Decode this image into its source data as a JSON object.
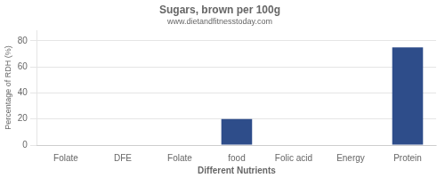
{
  "chart_data": {
    "type": "bar",
    "title": "Sugars, brown per 100g",
    "subtitle": "www.dietandfitnesstoday.com",
    "xlabel": "Different Nutrients",
    "ylabel": "Percentage of RDH (%)",
    "categories": [
      "Folate",
      "DFE",
      "Folate",
      "food",
      "Folic acid",
      "Energy",
      "Protein"
    ],
    "values": [
      0,
      0,
      0,
      20,
      0,
      0,
      75
    ],
    "color": "#2e4d8a",
    "ylim": [
      0,
      88
    ],
    "yticks": [
      0,
      20,
      40,
      60,
      80
    ],
    "grid": true
  }
}
